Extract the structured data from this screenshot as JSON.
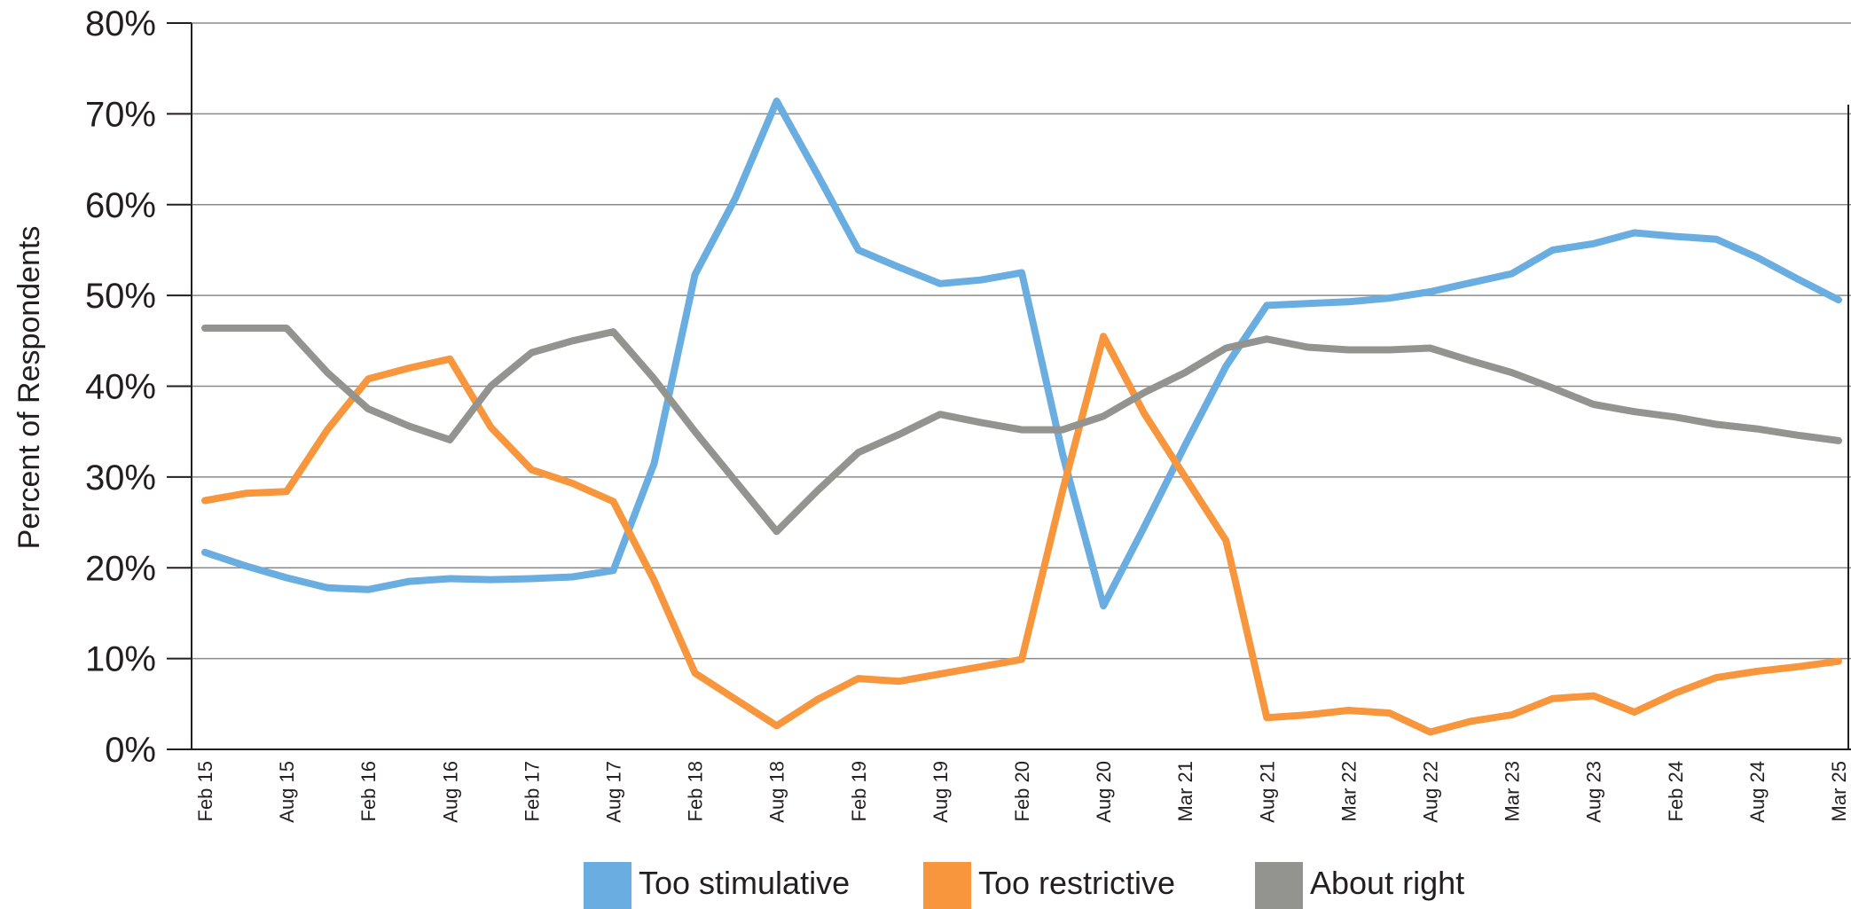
{
  "chart_data": {
    "type": "line",
    "ylabel": "Percent of Respondents",
    "xlabel": "",
    "title": "",
    "ylim": [
      0,
      80
    ],
    "y_ticks": [
      {
        "value": 0,
        "label": "0%"
      },
      {
        "value": 10,
        "label": "10%"
      },
      {
        "value": 20,
        "label": "20%"
      },
      {
        "value": 30,
        "label": "30%"
      },
      {
        "value": 40,
        "label": "40%"
      },
      {
        "value": 50,
        "label": "50%"
      },
      {
        "value": 60,
        "label": "60%"
      },
      {
        "value": 70,
        "label": "70%"
      },
      {
        "value": 80,
        "label": "80%"
      }
    ],
    "grid": true,
    "legend_position": "bottom",
    "x_tick_labels": [
      "Feb 15",
      "Aug 15",
      "Feb 16",
      "Aug 16",
      "Feb 17",
      "Aug 17",
      "Feb 18",
      "Aug 18",
      "Feb 19",
      "Aug 19",
      "Feb 20",
      "Aug 20",
      "Mar 21",
      "Aug 21",
      "Mar 22",
      "Aug 22",
      "Mar 23",
      "Aug 23",
      "Feb 24",
      "Aug 24",
      "Mar 25"
    ],
    "x_range": [
      0,
      40
    ],
    "series": [
      {
        "name": "Too stimulative",
        "color": "#6aade0",
        "points": [
          [
            0,
            21.7
          ],
          [
            1,
            20.2
          ],
          [
            2,
            18.9
          ],
          [
            3,
            17.8
          ],
          [
            4,
            17.6
          ],
          [
            5,
            18.5
          ],
          [
            6,
            18.8
          ],
          [
            7,
            18.7
          ],
          [
            8,
            18.8
          ],
          [
            9,
            19.0
          ],
          [
            10,
            19.7
          ],
          [
            11,
            31.5
          ],
          [
            12,
            52.3
          ],
          [
            13,
            60.8
          ],
          [
            14,
            71.4
          ],
          [
            15,
            63.3
          ],
          [
            16,
            55.0
          ],
          [
            17,
            53.1
          ],
          [
            18,
            51.3
          ],
          [
            19,
            51.7
          ],
          [
            20,
            52.5
          ],
          [
            21,
            32.5
          ],
          [
            22,
            15.8
          ],
          [
            23,
            24.5
          ],
          [
            24,
            33.5
          ],
          [
            25,
            42.2
          ],
          [
            26,
            48.9
          ],
          [
            27,
            49.1
          ],
          [
            28,
            49.3
          ],
          [
            29,
            49.7
          ],
          [
            30,
            50.4
          ],
          [
            31,
            51.4
          ],
          [
            32,
            52.4
          ],
          [
            33,
            55.0
          ],
          [
            34,
            55.7
          ],
          [
            35,
            56.9
          ],
          [
            36,
            56.5
          ],
          [
            37,
            56.2
          ],
          [
            38,
            54.2
          ],
          [
            39,
            51.8
          ],
          [
            40,
            49.5
          ]
        ]
      },
      {
        "name": "Too restrictive",
        "color": "#f7963d",
        "points": [
          [
            0,
            27.4
          ],
          [
            1,
            28.2
          ],
          [
            2,
            28.4
          ],
          [
            3,
            35.2
          ],
          [
            4,
            40.8
          ],
          [
            5,
            42.0
          ],
          [
            6,
            43.0
          ],
          [
            7,
            35.5
          ],
          [
            8,
            30.8
          ],
          [
            9,
            29.3
          ],
          [
            10,
            27.3
          ],
          [
            11,
            18.6
          ],
          [
            12,
            8.4
          ],
          [
            13,
            5.5
          ],
          [
            14,
            2.6
          ],
          [
            15,
            5.5
          ],
          [
            16,
            7.8
          ],
          [
            17,
            7.5
          ],
          [
            18,
            8.3
          ],
          [
            19,
            9.1
          ],
          [
            20,
            9.9
          ],
          [
            21,
            28.5
          ],
          [
            22,
            45.5
          ],
          [
            23,
            37.0
          ],
          [
            24,
            30.0
          ],
          [
            25,
            23.0
          ],
          [
            26,
            3.5
          ],
          [
            27,
            3.8
          ],
          [
            28,
            4.3
          ],
          [
            29,
            4.0
          ],
          [
            30,
            1.9
          ],
          [
            31,
            3.1
          ],
          [
            32,
            3.8
          ],
          [
            33,
            5.6
          ],
          [
            34,
            5.9
          ],
          [
            35,
            4.1
          ],
          [
            36,
            6.2
          ],
          [
            37,
            7.9
          ],
          [
            38,
            8.6
          ],
          [
            39,
            9.1
          ],
          [
            40,
            9.7
          ]
        ]
      },
      {
        "name": "About right",
        "color": "#939390",
        "points": [
          [
            0,
            46.4
          ],
          [
            1,
            46.4
          ],
          [
            2,
            46.4
          ],
          [
            3,
            41.5
          ],
          [
            4,
            37.5
          ],
          [
            5,
            35.6
          ],
          [
            6,
            34.1
          ],
          [
            7,
            40.0
          ],
          [
            8,
            43.7
          ],
          [
            9,
            45.0
          ],
          [
            10,
            46.0
          ],
          [
            11,
            40.8
          ],
          [
            12,
            35.0
          ],
          [
            13,
            29.5
          ],
          [
            14,
            24.0
          ],
          [
            15,
            28.5
          ],
          [
            16,
            32.7
          ],
          [
            17,
            34.7
          ],
          [
            18,
            36.9
          ],
          [
            19,
            36.0
          ],
          [
            20,
            35.2
          ],
          [
            21,
            35.2
          ],
          [
            22,
            36.7
          ],
          [
            23,
            39.3
          ],
          [
            24,
            41.5
          ],
          [
            25,
            44.2
          ],
          [
            26,
            45.2
          ],
          [
            27,
            44.3
          ],
          [
            28,
            44.0
          ],
          [
            29,
            44.0
          ],
          [
            30,
            44.2
          ],
          [
            31,
            42.8
          ],
          [
            32,
            41.5
          ],
          [
            33,
            39.8
          ],
          [
            34,
            38.0
          ],
          [
            35,
            37.2
          ],
          [
            36,
            36.6
          ],
          [
            37,
            35.8
          ],
          [
            38,
            35.3
          ],
          [
            39,
            34.6
          ],
          [
            40,
            34.0
          ]
        ]
      }
    ]
  }
}
